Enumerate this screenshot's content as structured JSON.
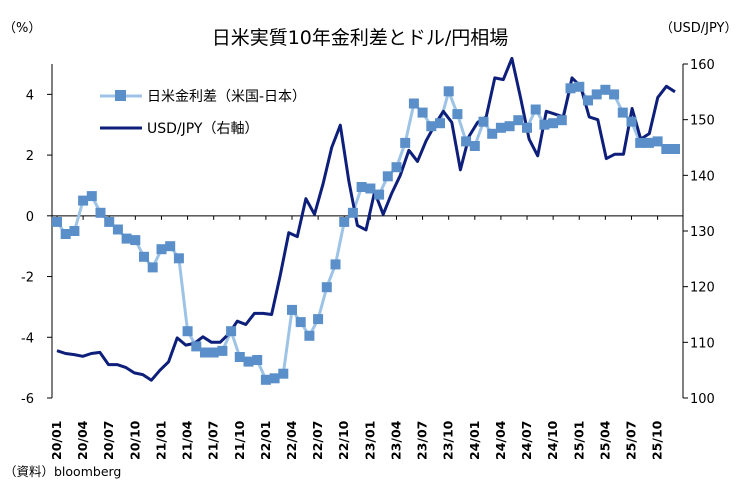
{
  "chart_data": {
    "type": "line",
    "title": "日米実質10年金利差とドル/円相場",
    "left_unit": "（%）",
    "right_unit": "（USD/JPY）",
    "source": "（資料）bloomberg",
    "y_left": {
      "min": -6,
      "max": 4,
      "ticks": [
        -6,
        -4,
        -2,
        0,
        2,
        4
      ],
      "top": 5
    },
    "y_right": {
      "min": 100,
      "max": 160,
      "ticks": [
        100,
        110,
        120,
        130,
        140,
        150,
        160
      ]
    },
    "x_tick_labels": [
      "20/01",
      "20/04",
      "20/07",
      "20/10",
      "21/01",
      "21/04",
      "21/07",
      "21/10",
      "22/01",
      "22/04",
      "22/07",
      "22/10",
      "23/01",
      "23/04",
      "23/07",
      "23/10",
      "24/01",
      "24/04",
      "24/07",
      "24/10",
      "25/01",
      "25/04",
      "25/07",
      "25/10"
    ],
    "legend": {
      "placement": "top-left"
    },
    "series": [
      {
        "name": "日米金利差（米国-日本）",
        "axis": "left",
        "color": "#9dc3e6",
        "marker_color": "#5b8fc9",
        "marker": "square",
        "values": [
          -0.2,
          -0.6,
          -0.5,
          0.5,
          0.65,
          0.1,
          -0.2,
          -0.45,
          -0.75,
          -0.8,
          -1.35,
          -1.7,
          -1.1,
          -1.0,
          -1.4,
          -3.8,
          -4.3,
          -4.5,
          -4.5,
          -4.45,
          -3.8,
          -4.65,
          -4.8,
          -4.75,
          -5.4,
          -5.35,
          -5.2,
          -3.1,
          -3.5,
          -3.95,
          -3.4,
          -2.35,
          -1.6,
          -0.2,
          0.1,
          0.95,
          0.9,
          0.7,
          1.3,
          1.6,
          2.4,
          3.7,
          3.4,
          2.95,
          3.05,
          4.1,
          3.35,
          2.45,
          2.3,
          3.1,
          2.7,
          2.9,
          2.95,
          3.15,
          2.9,
          3.5,
          3.0,
          3.05,
          3.15,
          4.2,
          4.25,
          3.8,
          4.0,
          4.15,
          4.0,
          3.4,
          3.1,
          2.4,
          2.4,
          2.45,
          2.2,
          2.2
        ]
      },
      {
        "name": "USD/JPY（右軸）",
        "axis": "right",
        "color": "#0d1f7a",
        "values": [
          108.5,
          108.0,
          107.8,
          107.5,
          108.0,
          108.2,
          106.0,
          106.0,
          105.5,
          104.5,
          104.2,
          103.2,
          105.0,
          106.5,
          110.8,
          109.5,
          109.8,
          111.0,
          110.0,
          110.0,
          111.5,
          113.8,
          113.2,
          115.2,
          115.2,
          115.0,
          122.0,
          129.7,
          129.0,
          135.8,
          133.0,
          138.5,
          145.0,
          149.0,
          139.0,
          131.0,
          130.2,
          137.0,
          133.0,
          136.8,
          140.0,
          144.5,
          142.5,
          146.2,
          149.0,
          151.5,
          149.5,
          141.0,
          147.0,
          149.5,
          150.5,
          157.5,
          157.2,
          161.0,
          154.0,
          146.5,
          143.5,
          151.5,
          151.0,
          150.5,
          157.5,
          156.0,
          150.5,
          150.0,
          143.0,
          143.8,
          143.8,
          152.0,
          146.5,
          147.5,
          154.0,
          156.0,
          155.0
        ]
      }
    ]
  }
}
